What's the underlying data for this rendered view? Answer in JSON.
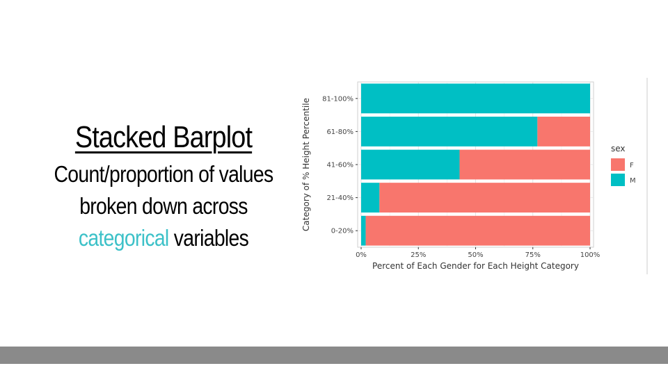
{
  "slide": {
    "title": "Stacked Barplot",
    "line1": "Count/proportion of values",
    "line2": "broken down across",
    "line3_accent": "categorical",
    "line3_rest": " variables"
  },
  "colors": {
    "accent": "#3cc1c8",
    "F": "#f8766d",
    "M": "#00bfc4",
    "footer": "#8a8a8a"
  },
  "chart_data": {
    "type": "bar",
    "orientation": "horizontal",
    "stacked": true,
    "title": "",
    "xlabel": "Percent of Each Gender for Each Height Category",
    "ylabel": "Category of % Height Percentile",
    "categories": [
      "0-20%",
      "21-40%",
      "41-60%",
      "61-80%",
      "81-100%"
    ],
    "series": [
      {
        "name": "M",
        "color": "#00bfc4",
        "values": [
          0.02,
          0.08,
          0.43,
          0.77,
          1.0
        ]
      },
      {
        "name": "F",
        "color": "#f8766d",
        "values": [
          0.98,
          0.92,
          0.57,
          0.23,
          0.0
        ]
      }
    ],
    "xlim": [
      0,
      1
    ],
    "xticks": [
      0,
      0.25,
      0.5,
      0.75,
      1.0
    ],
    "xtick_labels": [
      "0%",
      "25%",
      "50%",
      "75%",
      "100%"
    ],
    "grid": true,
    "legend": {
      "title": "sex",
      "entries": [
        "F",
        "M"
      ],
      "placement": "right"
    }
  }
}
